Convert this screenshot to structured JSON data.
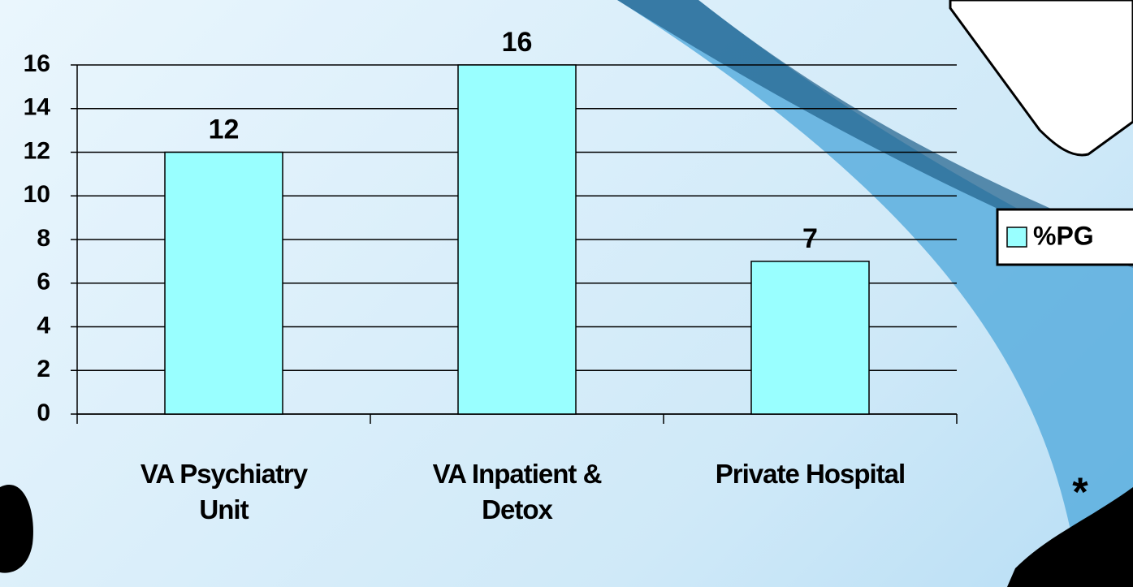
{
  "chart_data": {
    "type": "bar",
    "categories": [
      "VA Psychiatry Unit",
      "VA Inpatient & Detox",
      "Private Hospital"
    ],
    "series": [
      {
        "name": "%PG",
        "color": "#99ffff",
        "values": [
          12,
          16,
          7
        ]
      }
    ],
    "ylim": [
      0,
      16
    ],
    "yticks": [
      0,
      2,
      4,
      6,
      8,
      10,
      12,
      14,
      16
    ],
    "grid": true,
    "legend": "right"
  }
}
